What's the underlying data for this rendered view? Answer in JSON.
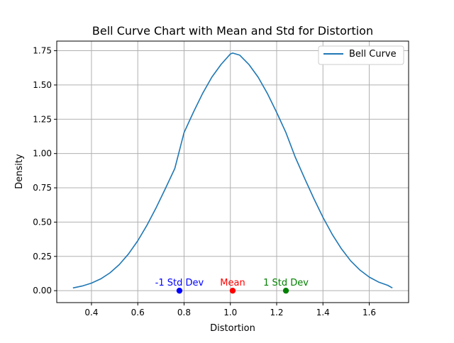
{
  "chart_data": {
    "type": "line",
    "title": "Bell Curve Chart with Mean and Std for Distortion",
    "xlabel": "Distortion",
    "ylabel": "Density",
    "xlim": [
      0.25,
      1.77
    ],
    "ylim": [
      -0.087,
      1.82
    ],
    "grid": true,
    "legend": {
      "position": "top-right",
      "entries": [
        {
          "label": "Bell Curve",
          "color": "#1f77b4"
        }
      ]
    },
    "x_ticks": [
      0.4,
      0.6,
      0.8,
      1.0,
      1.2,
      1.4,
      1.6
    ],
    "x_tick_labels": [
      "0.4",
      "0.6",
      "0.8",
      "1.0",
      "1.2",
      "1.4",
      "1.6"
    ],
    "y_ticks": [
      0.0,
      0.25,
      0.5,
      0.75,
      1.0,
      1.25,
      1.5,
      1.75
    ],
    "y_tick_labels": [
      "0.00",
      "0.25",
      "0.50",
      "0.75",
      "1.00",
      "1.25",
      "1.50",
      "1.75"
    ],
    "series": [
      {
        "name": "Bell Curve",
        "color": "#1f77b4",
        "x": [
          0.32,
          0.36,
          0.4,
          0.44,
          0.48,
          0.52,
          0.56,
          0.6,
          0.64,
          0.68,
          0.72,
          0.76,
          0.8,
          0.84,
          0.88,
          0.92,
          0.96,
          1.0,
          1.01,
          1.04,
          1.08,
          1.12,
          1.16,
          1.2,
          1.24,
          1.28,
          1.32,
          1.36,
          1.4,
          1.44,
          1.48,
          1.52,
          1.56,
          1.6,
          1.64,
          1.68,
          1.7
        ],
        "y": [
          0.02,
          0.034,
          0.055,
          0.086,
          0.13,
          0.19,
          0.268,
          0.364,
          0.478,
          0.607,
          0.747,
          0.891,
          1.153,
          1.3,
          1.438,
          1.557,
          1.65,
          1.726,
          1.733,
          1.718,
          1.65,
          1.557,
          1.438,
          1.3,
          1.153,
          0.975,
          0.822,
          0.674,
          0.535,
          0.411,
          0.305,
          0.217,
          0.15,
          0.099,
          0.063,
          0.039,
          0.02
        ]
      }
    ],
    "markers": [
      {
        "label": "-1 Std Dev",
        "x": 0.78,
        "y": 0.0,
        "color": "#0000ff"
      },
      {
        "label": "Mean",
        "x": 1.01,
        "y": 0.0,
        "color": "#ff0000"
      },
      {
        "label": "1 Std Dev",
        "x": 1.24,
        "y": 0.0,
        "color": "#008000"
      }
    ]
  }
}
